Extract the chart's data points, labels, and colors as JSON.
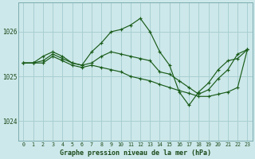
{
  "background_color": "#cde8ea",
  "grid_color": "#a8cfd2",
  "line_color": "#1a5c1a",
  "marker_color": "#1a5c1a",
  "title": "Graphe pression niveau de la mer (hPa)",
  "title_color": "#1a4a1a",
  "xlim": [
    -0.5,
    23.5
  ],
  "ylim": [
    1023.55,
    1026.65
  ],
  "yticks": [
    1024,
    1025,
    1026
  ],
  "xticks": [
    0,
    1,
    2,
    3,
    4,
    5,
    6,
    7,
    8,
    9,
    10,
    11,
    12,
    13,
    14,
    15,
    16,
    17,
    18,
    19,
    20,
    21,
    22,
    23
  ],
  "series": [
    {
      "x": [
        0,
        1,
        2,
        3,
        4,
        5,
        6,
        7,
        8,
        9,
        10,
        11,
        12,
        13,
        14,
        15,
        16,
        17,
        18,
        19,
        20,
        21,
        22,
        23
      ],
      "y": [
        1025.3,
        1025.3,
        1025.45,
        1025.55,
        1025.45,
        1025.3,
        1025.25,
        1025.55,
        1025.75,
        1026.0,
        1026.05,
        1026.15,
        1026.3,
        1026.0,
        1025.55,
        1025.25,
        1024.65,
        1024.35,
        1024.65,
        1024.85,
        1025.15,
        1025.35,
        1025.4,
        1025.6
      ]
    },
    {
      "x": [
        0,
        1,
        2,
        3,
        4,
        5,
        6,
        7,
        8,
        9,
        10,
        11,
        12,
        13,
        14,
        15,
        16,
        17,
        18,
        19,
        20,
        21,
        22,
        23
      ],
      "y": [
        1025.3,
        1025.3,
        1025.35,
        1025.5,
        1025.4,
        1025.3,
        1025.25,
        1025.3,
        1025.45,
        1025.55,
        1025.5,
        1025.45,
        1025.4,
        1025.35,
        1025.1,
        1025.05,
        1024.9,
        1024.75,
        1024.6,
        1024.7,
        1024.95,
        1025.15,
        1025.5,
        1025.6
      ]
    },
    {
      "x": [
        0,
        1,
        2,
        3,
        4,
        5,
        6,
        7,
        8,
        9,
        10,
        11,
        12,
        13,
        14,
        15,
        16,
        17,
        18,
        19,
        20,
        21,
        22,
        23
      ],
      "y": [
        1025.3,
        1025.3,
        1025.3,
        1025.45,
        1025.35,
        1025.25,
        1025.2,
        1025.25,
        1025.2,
        1025.15,
        1025.1,
        1025.0,
        1024.95,
        1024.9,
        1024.82,
        1024.75,
        1024.68,
        1024.62,
        1024.55,
        1024.55,
        1024.6,
        1024.65,
        1024.75,
        1025.6
      ]
    }
  ]
}
